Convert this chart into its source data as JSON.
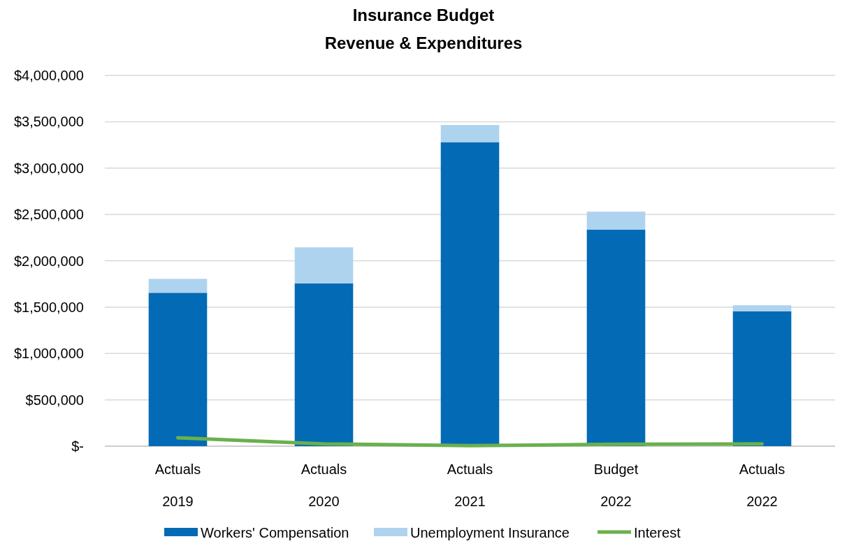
{
  "chart_data": {
    "type": "bar",
    "title": "Insurance Budget",
    "subtitle": "Revenue & Expenditures",
    "categories": [
      "Actuals\n2019",
      "Actuals\n2020",
      "Actuals\n2021",
      "Budget\n2022",
      "Actuals\n2022"
    ],
    "stacked": true,
    "series": [
      {
        "name": "Workers' Compensation",
        "color": "#036ab5",
        "values": [
          1655000,
          1755000,
          3280000,
          2335000,
          1455000
        ]
      },
      {
        "name": "Unemployment Insurance",
        "color": "#aed3ef",
        "values": [
          150000,
          390000,
          185000,
          195000,
          65000
        ]
      },
      {
        "name": "Interest",
        "type": "line",
        "color": "#6ab04c",
        "values": [
          90000,
          25000,
          5000,
          20000,
          25000
        ]
      }
    ],
    "ylim": [
      0,
      4000000
    ],
    "yticks": [
      {
        "value": 0,
        "label": "$-"
      },
      {
        "value": 500000,
        "label": "$500,000"
      },
      {
        "value": 1000000,
        "label": "$1,000,000"
      },
      {
        "value": 1500000,
        "label": "$1,500,000"
      },
      {
        "value": 2000000,
        "label": "$2,000,000"
      },
      {
        "value": 2500000,
        "label": "$2,500,000"
      },
      {
        "value": 3000000,
        "label": "$3,000,000"
      },
      {
        "value": 3500000,
        "label": "$3,500,000"
      },
      {
        "value": 4000000,
        "label": "$4,000,000"
      }
    ],
    "grid": "y",
    "legend": "bottom",
    "marker": "none",
    "line_style": "solid"
  }
}
